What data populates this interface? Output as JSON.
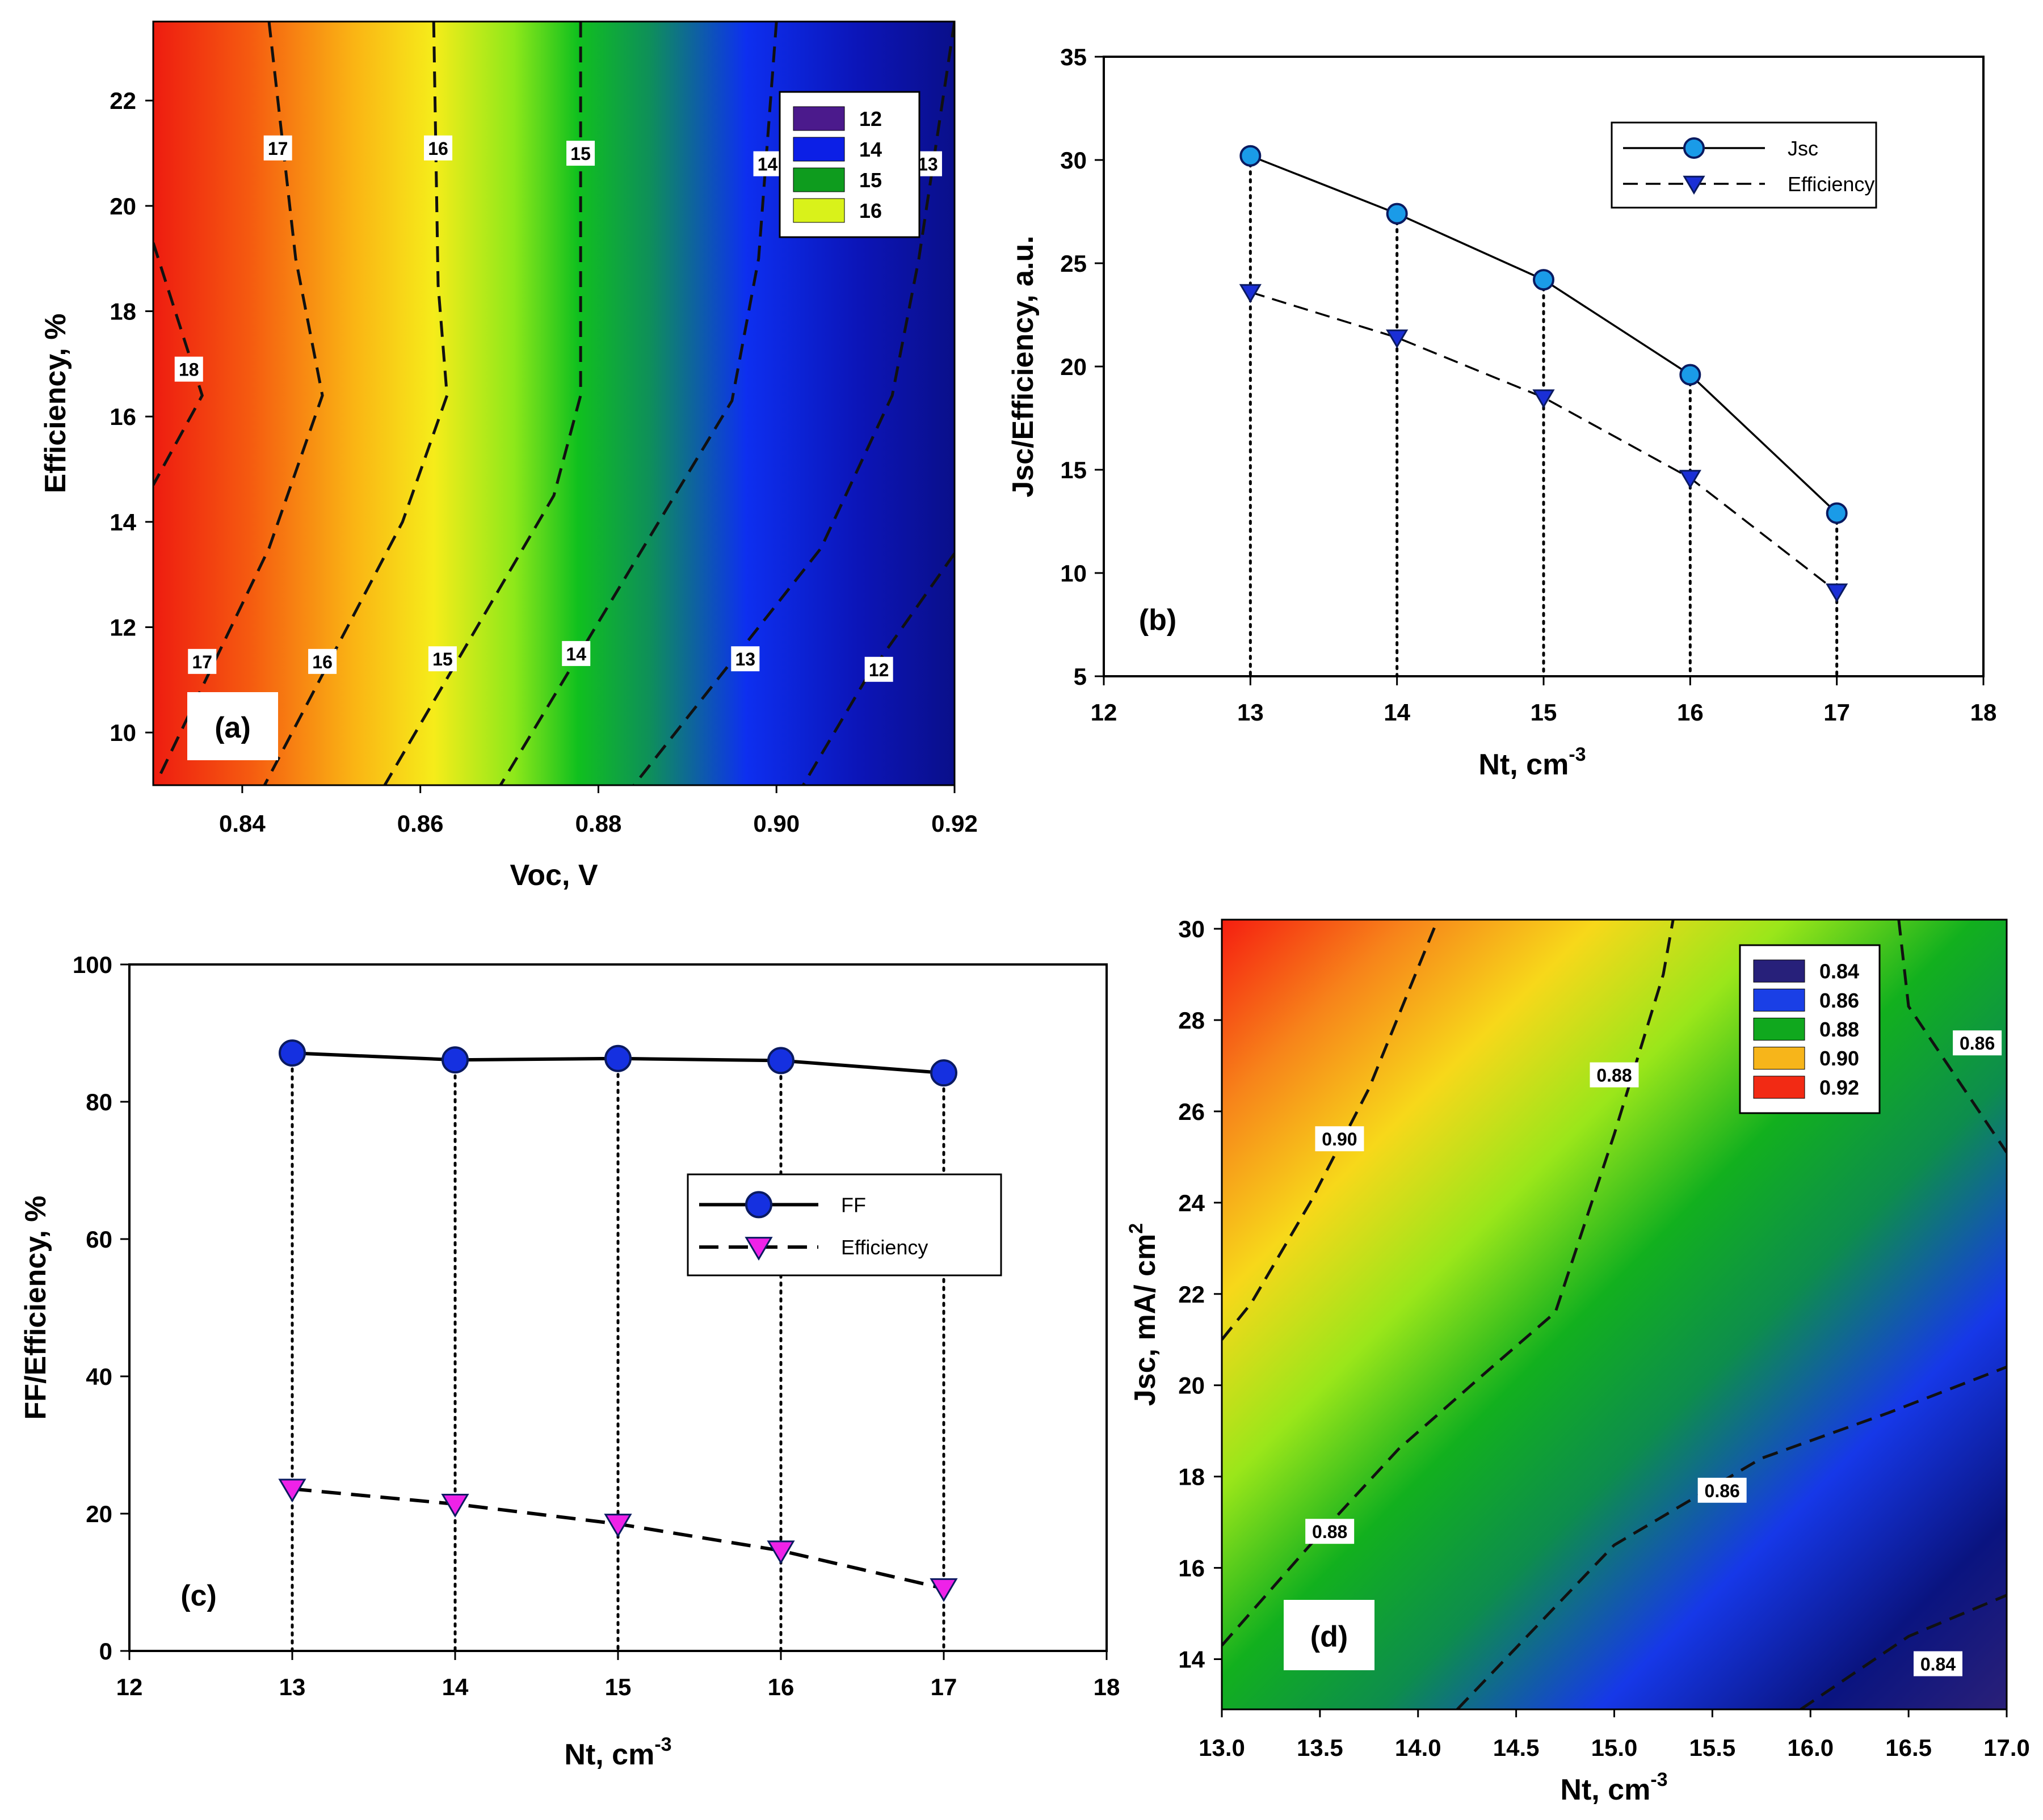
{
  "chart_data": [
    {
      "panel": "(a)",
      "type": "heatmap",
      "xlabel": "Voc, V",
      "ylabel": "Efficiency, %",
      "xlim": [
        0.83,
        0.92
      ],
      "ylim": [
        9,
        23.5
      ],
      "x_ticks": [
        "0.84",
        "0.86",
        "0.88",
        "0.90",
        "0.92"
      ],
      "y_ticks": [
        "10",
        "12",
        "14",
        "16",
        "18",
        "20",
        "22"
      ],
      "legend": {
        "title": "",
        "entries": [
          {
            "label": "12",
            "color": "#4b1a8c"
          },
          {
            "label": "14",
            "color": "#0c1fe6"
          },
          {
            "label": "15",
            "color": "#0e9c1e"
          },
          {
            "label": "16",
            "color": "#d9f21a"
          }
        ]
      },
      "contour_lines": [
        {
          "level": "18",
          "points": [
            [
              0.83,
              19.3
            ],
            [
              0.8355,
              16.4
            ],
            [
              0.83,
              14.7
            ]
          ]
        },
        {
          "level": "17",
          "points": [
            [
              0.843,
              23.5
            ],
            [
              0.846,
              19.0
            ],
            [
              0.849,
              16.4
            ],
            [
              0.843,
              13.5
            ],
            [
              0.8305,
              9.1
            ]
          ]
        },
        {
          "level": "16",
          "points": [
            [
              0.8615,
              23.5
            ],
            [
              0.862,
              18.5
            ],
            [
              0.863,
              16.4
            ],
            [
              0.858,
              14.0
            ],
            [
              0.8425,
              9.0
            ]
          ]
        },
        {
          "level": "15",
          "points": [
            [
              0.878,
              23.5
            ],
            [
              0.878,
              16.4
            ],
            [
              0.875,
              14.5
            ],
            [
              0.856,
              9.0
            ]
          ]
        },
        {
          "level": "14",
          "points": [
            [
              0.9,
              23.5
            ],
            [
              0.898,
              19.0
            ],
            [
              0.895,
              16.3
            ],
            [
              0.885,
              13.5
            ],
            [
              0.869,
              9.0
            ]
          ]
        },
        {
          "level": "13",
          "points": [
            [
              0.92,
              23.5
            ],
            [
              0.916,
              19.0
            ],
            [
              0.913,
              16.4
            ],
            [
              0.905,
              13.5
            ],
            [
              0.884,
              9.0
            ]
          ]
        },
        {
          "level": "12",
          "points": [
            [
              0.92,
              13.4
            ],
            [
              0.91,
              11.0
            ],
            [
              0.903,
              9.0
            ]
          ]
        }
      ],
      "contour_labels": [
        {
          "text": "18",
          "x": 0.834,
          "y": 16.9
        },
        {
          "text": "17",
          "x": 0.844,
          "y": 21.1
        },
        {
          "text": "16",
          "x": 0.862,
          "y": 21.1
        },
        {
          "text": "15",
          "x": 0.878,
          "y": 21.0
        },
        {
          "text": "14",
          "x": 0.899,
          "y": 20.8
        },
        {
          "text": "13",
          "x": 0.917,
          "y": 20.8
        },
        {
          "text": "17",
          "x": 0.8355,
          "y": 11.35
        },
        {
          "text": "16",
          "x": 0.849,
          "y": 11.35
        },
        {
          "text": "15",
          "x": 0.8625,
          "y": 11.4
        },
        {
          "text": "14",
          "x": 0.8775,
          "y": 11.5
        },
        {
          "text": "13",
          "x": 0.8965,
          "y": 11.4
        },
        {
          "text": "12",
          "x": 0.9115,
          "y": 11.2
        }
      ]
    },
    {
      "panel": "(b)",
      "type": "line",
      "xlabel": "Nt,  cm",
      "xlabel_superscript": "-3",
      "ylabel": "Jsc/Efficiency, a.u.",
      "xlim": [
        12,
        18
      ],
      "ylim": [
        5,
        35
      ],
      "x_ticks": [
        "12",
        "13",
        "14",
        "15",
        "16",
        "17",
        "18"
      ],
      "y_ticks": [
        "5",
        "10",
        "15",
        "20",
        "25",
        "30",
        "35"
      ],
      "x": [
        13,
        14,
        15,
        16,
        17
      ],
      "series": [
        {
          "name": "Jsc",
          "values": [
            30.2,
            27.4,
            24.2,
            19.6,
            12.9
          ],
          "color": "#1a9be8",
          "style": "solid",
          "marker": "circle"
        },
        {
          "name": "Efficiency",
          "values": [
            23.6,
            21.4,
            18.5,
            14.6,
            9.1
          ],
          "color": "#1a2fd6",
          "style": "dashed",
          "marker": "triangle-down"
        }
      ],
      "drop_lines": "dotted vertical lines from Jsc points to x-axis",
      "legend_position": "top-right"
    },
    {
      "panel": "(c)",
      "type": "line",
      "xlabel": "Nt,  cm",
      "xlabel_superscript": "-3",
      "ylabel": "FF/Efficiency, %",
      "xlim": [
        12,
        18
      ],
      "ylim": [
        0,
        100
      ],
      "x_ticks": [
        "12",
        "13",
        "14",
        "15",
        "16",
        "17",
        "18"
      ],
      "y_ticks": [
        "0",
        "20",
        "40",
        "60",
        "80",
        "100"
      ],
      "x": [
        13,
        14,
        15,
        16,
        17
      ],
      "series": [
        {
          "name": "FF",
          "values": [
            87.1,
            86.1,
            86.3,
            86.0,
            84.2
          ],
          "color": "#1530e0",
          "style": "solid",
          "marker": "circle"
        },
        {
          "name": "Efficiency",
          "values": [
            23.6,
            21.4,
            18.5,
            14.6,
            9.1
          ],
          "color": "#ee22e8",
          "style": "dashed",
          "marker": "triangle-down"
        }
      ],
      "drop_lines": "dotted vertical lines from FF points to x-axis",
      "legend_position": "center-right"
    },
    {
      "panel": "(d)",
      "type": "heatmap",
      "xlabel": "Nt,  cm",
      "xlabel_superscript": "-3",
      "ylabel": "Jsc, mA/ cm",
      "ylabel_superscript": "2",
      "xlim": [
        13.0,
        17.0
      ],
      "ylim": [
        12.9,
        30.2
      ],
      "x_ticks": [
        "13.0",
        "13.5",
        "14.0",
        "14.5",
        "15.0",
        "15.5",
        "16.0",
        "16.5",
        "17.0"
      ],
      "y_ticks": [
        "14",
        "16",
        "18",
        "20",
        "22",
        "24",
        "26",
        "28",
        "30"
      ],
      "legend": {
        "title": "",
        "entries": [
          {
            "label": "0.84",
            "color": "#27207a"
          },
          {
            "label": "0.86",
            "color": "#1a3fe6"
          },
          {
            "label": "0.88",
            "color": "#10a81e"
          },
          {
            "label": "0.90",
            "color": "#f7b51a"
          },
          {
            "label": "0.92",
            "color": "#f22a14"
          }
        ]
      },
      "contour_lines": [
        {
          "level": "0.90",
          "points": [
            [
              13.0,
              21.0
            ],
            [
              13.15,
              21.8
            ],
            [
              13.45,
              24.0
            ],
            [
              13.75,
              26.5
            ],
            [
              14.1,
              30.2
            ]
          ]
        },
        {
          "level": "0.88",
          "points": [
            [
              13.0,
              14.3
            ],
            [
              13.45,
              16.5
            ],
            [
              13.9,
              18.6
            ],
            [
              14.35,
              20.3
            ],
            [
              14.7,
              21.6
            ],
            [
              15.0,
              25.5
            ],
            [
              15.25,
              29.0
            ],
            [
              15.3,
              30.2
            ]
          ]
        },
        {
          "level": "0.86",
          "points": [
            [
              14.2,
              12.9
            ],
            [
              15.0,
              16.5
            ],
            [
              15.75,
              18.4
            ],
            [
              16.4,
              19.4
            ],
            [
              17.0,
              20.4
            ]
          ]
        },
        {
          "level": "0.86",
          "points": [
            [
              16.45,
              30.2
            ],
            [
              16.5,
              28.3
            ],
            [
              17.0,
              25.1
            ]
          ]
        },
        {
          "level": "0.84",
          "points": [
            [
              15.95,
              12.9
            ],
            [
              16.5,
              14.5
            ],
            [
              17.0,
              15.4
            ]
          ]
        }
      ],
      "contour_labels": [
        {
          "text": "0.90",
          "x": 13.6,
          "y": 25.4
        },
        {
          "text": "0.88",
          "x": 15.0,
          "y": 26.8
        },
        {
          "text": "0.86",
          "x": 16.85,
          "y": 27.5
        },
        {
          "text": "0.88",
          "x": 13.55,
          "y": 16.8
        },
        {
          "text": "0.86",
          "x": 15.55,
          "y": 17.7
        },
        {
          "text": "0.84",
          "x": 16.65,
          "y": 13.9
        }
      ]
    }
  ]
}
